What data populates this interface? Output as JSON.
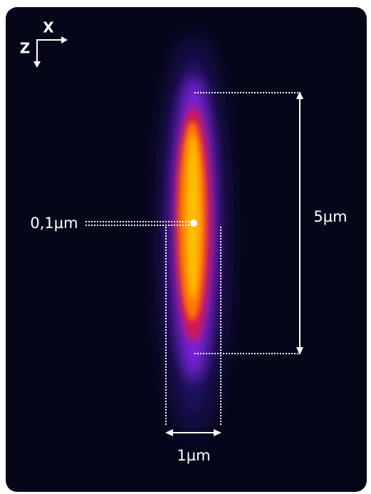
{
  "axes": {
    "x": "X",
    "z": "Z"
  },
  "annotations": {
    "point": "0,1µm",
    "length": "5µm",
    "width": "1µm"
  }
}
